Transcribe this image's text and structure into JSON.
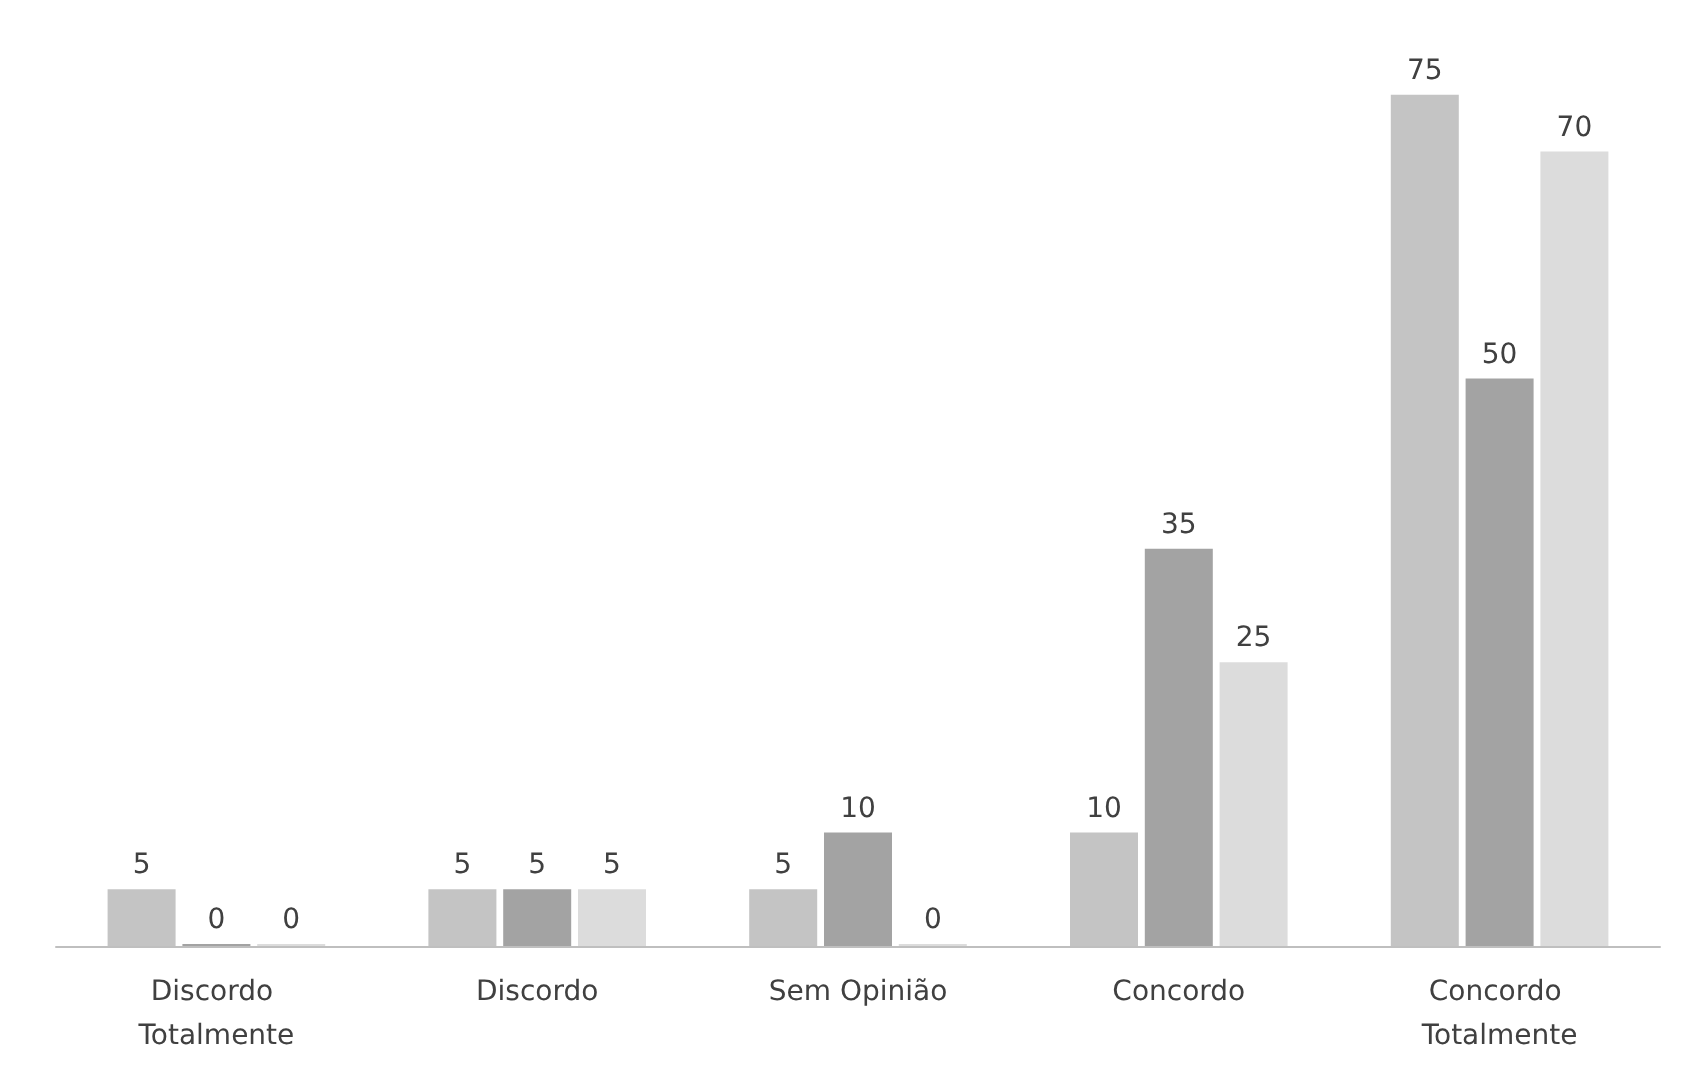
{
  "chart_data": {
    "type": "bar",
    "categories": [
      "Discordo Totalmente",
      "Discordo",
      "Sem Opinião",
      "Concordo",
      "Concordo Totalmente"
    ],
    "series": [
      {
        "color": "#c4c4c4",
        "values": [
          5,
          5,
          5,
          10,
          75
        ]
      },
      {
        "color": "#a3a3a3",
        "values": [
          0,
          5,
          10,
          35,
          50
        ]
      },
      {
        "color": "#dcdcdc",
        "values": [
          0,
          5,
          0,
          25,
          70
        ]
      }
    ],
    "data_labels": true,
    "grid": false,
    "tick_labels": "x"
  }
}
